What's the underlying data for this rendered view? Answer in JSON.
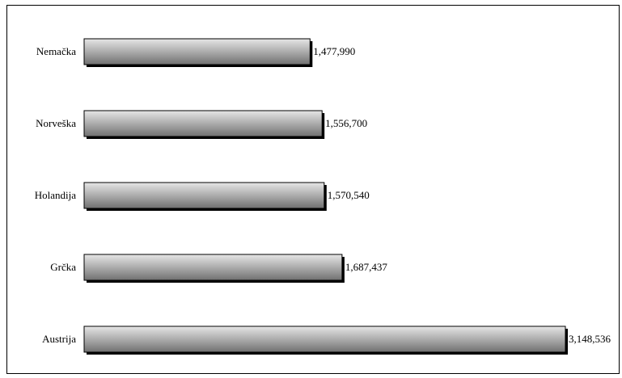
{
  "chart_data": {
    "type": "bar",
    "orientation": "horizontal",
    "categories": [
      "Nemačka",
      "Norveška",
      "Holandija",
      "Grčka",
      "Austrija"
    ],
    "values": [
      1477990,
      1556700,
      1570540,
      1687437,
      3148536
    ],
    "value_labels": [
      "1,477,990",
      "1,556,700",
      "1,570,540",
      "1,687,437",
      "3,148,536"
    ],
    "title": "",
    "xlabel": "",
    "ylabel": "",
    "xlim": [
      0,
      3148536
    ],
    "grid": false,
    "legend": "none",
    "colors": {
      "bar_light": "#e6e6e6",
      "bar_mid": "#a6a6a6",
      "bar_dark": "#707070",
      "bar_shadow": "#000000",
      "frame": "#000000"
    }
  }
}
